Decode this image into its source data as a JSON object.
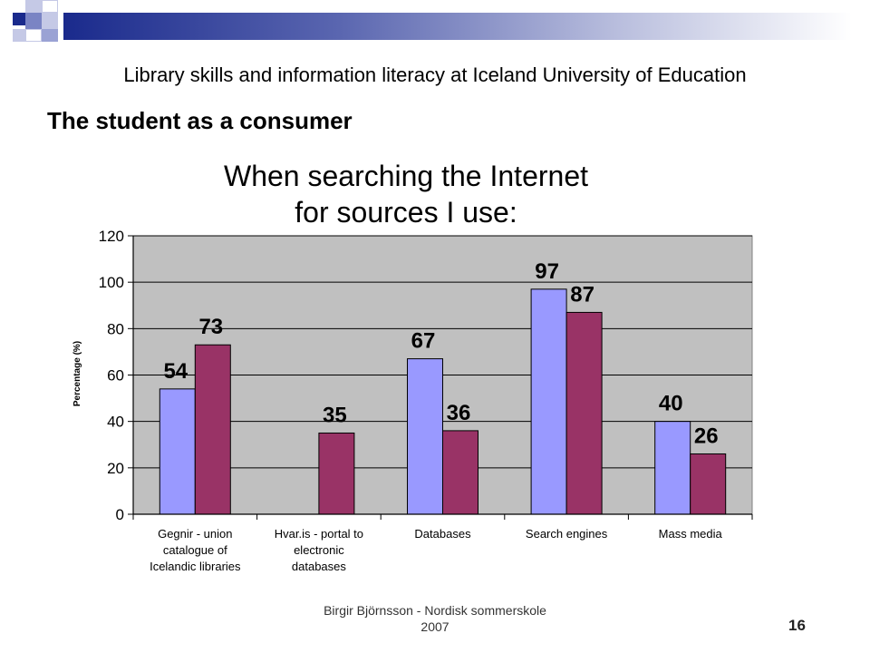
{
  "slide": {
    "subtitle": "Library skills and information literacy at Iceland University of Education",
    "title": "The student as a consumer",
    "footer_line1": "Birgir Björnsson - Nordisk sommerskole",
    "footer_line2": "2007",
    "page_number": "16"
  },
  "colors": {
    "series_a": "#9999ff",
    "series_b": "#993366",
    "plot_bg": "#c0c0c0",
    "header_dark": "#1a2a8c"
  },
  "chart_data": {
    "type": "bar",
    "title_lines": [
      "When searching the Internet",
      "for sources I use:"
    ],
    "ylabel": "Percentage (%)",
    "xlabel": "",
    "ylim": [
      0,
      120
    ],
    "yticks": [
      "0",
      "20",
      "40",
      "60",
      "80",
      "100",
      "120"
    ],
    "grid": true,
    "legend": "none",
    "categories": [
      [
        "Gegnir - union",
        "catalogue of",
        "Icelandic libraries"
      ],
      [
        "Hvar.is - portal to",
        "electronic",
        "databases"
      ],
      [
        "Databases"
      ],
      [
        "Search engines"
      ],
      [
        "Mass media"
      ]
    ],
    "series": [
      {
        "values": [
          54,
          null,
          67,
          97,
          40
        ]
      },
      {
        "values": [
          73,
          35,
          36,
          87,
          26
        ]
      }
    ]
  }
}
